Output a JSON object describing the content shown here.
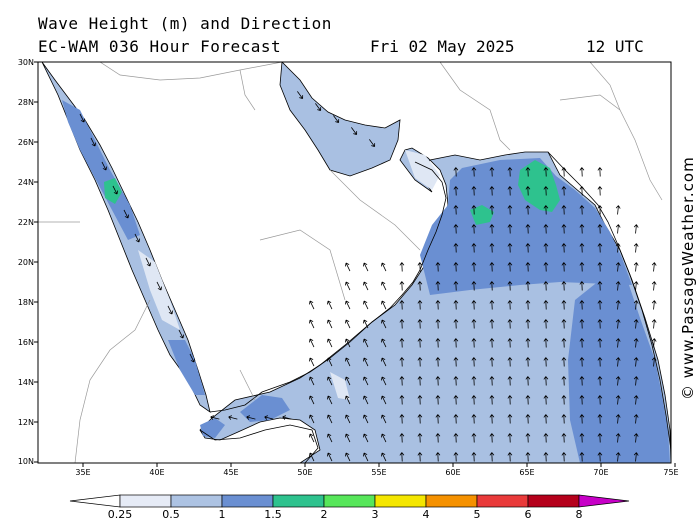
{
  "title_line1": "Wave Height (m) and Direction",
  "title_line2": "EC-WAM 036 Hour Forecast",
  "forecast_date": "Fri 02 May 2025",
  "forecast_time": "12 UTC",
  "credit": "© www.PassageWeather.com",
  "lat_labels": [
    "30N",
    "28N",
    "26N",
    "24N",
    "22N",
    "20N",
    "18N",
    "16N",
    "14N",
    "12N",
    "10N"
  ],
  "lon_labels": [
    "35E",
    "40E",
    "45E",
    "50E",
    "55E",
    "60E",
    "65E",
    "70E",
    "75E"
  ],
  "legend": {
    "labels": [
      "0.25",
      "0.5",
      "1",
      "1.5",
      "2",
      "3",
      "4",
      "5",
      "6",
      "8"
    ],
    "colors": [
      "#e6ebf6",
      "#adc3e3",
      "#6a8fd2",
      "#2ec28e",
      "#57e65a",
      "#f4e600",
      "#f59100",
      "#e93a3a",
      "#b5001b",
      "#c700c7"
    ]
  },
  "colors": {
    "land": "#ffffff",
    "sea_low": "#dfe7f4",
    "sea_mid": "#a9c0e2",
    "sea_high": "#6a8fd2",
    "sea_peak": "#2ec28e",
    "coast": "#000000",
    "border": "#9a9a9a"
  },
  "map": {
    "wave_direction": "mostly from south/southwest (arrows pointing north)",
    "swell_peak_area": "NE Arabian Sea near 23-24N 65-66E"
  }
}
